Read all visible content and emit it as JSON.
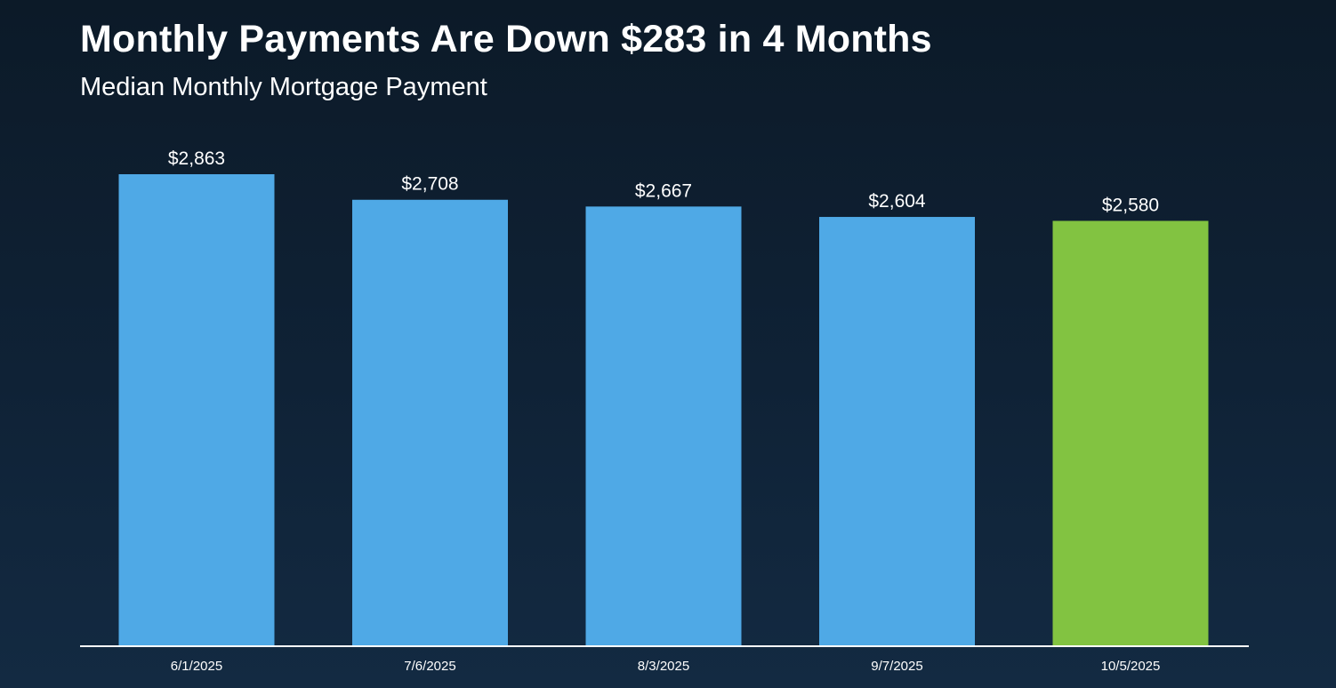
{
  "header": {
    "title": "Monthly Payments Are Down $283 in 4 Months",
    "subtitle": "Median Monthly Mortgage Payment"
  },
  "colors": {
    "bar_default": "#4fa9e6",
    "bar_highlight": "#82c341",
    "axis": "#ffffff",
    "text": "#ffffff"
  },
  "chart_data": {
    "type": "bar",
    "categories": [
      "6/1/2025",
      "7/6/2025",
      "8/3/2025",
      "9/7/2025",
      "10/5/2025"
    ],
    "values": [
      2863,
      2708,
      2667,
      2604,
      2580
    ],
    "value_labels": [
      "$2,863",
      "$2,708",
      "$2,667",
      "$2,604",
      "$2,580"
    ],
    "highlight_index": 4,
    "title": "Monthly Payments Are Down $283 in 4 Months",
    "subtitle": "Median Monthly Mortgage Payment",
    "xlabel": "",
    "ylabel": "",
    "ylim": [
      0,
      2863
    ],
    "grid": false,
    "legend": "none"
  }
}
